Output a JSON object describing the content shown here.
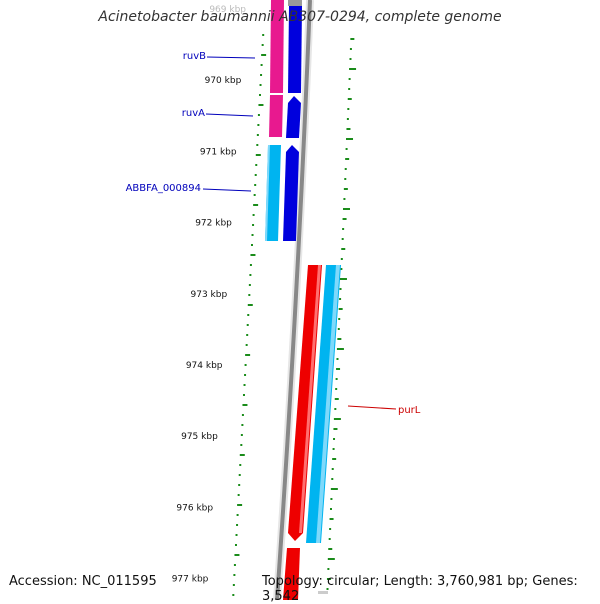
{
  "title": "Acinetobacter baumannii AB307-0294, complete genome",
  "footer": {
    "accession": "Accession: NC_011595",
    "summary": "Topology: circular; Length: 3,760,981 bp; Genes: 3,542"
  },
  "ticks": [
    {
      "label": "969 kbp",
      "faded": true
    },
    {
      "label": "970 kbp"
    },
    {
      "label": "971 kbp"
    },
    {
      "label": "972 kbp"
    },
    {
      "label": "973 kbp"
    },
    {
      "label": "974 kbp"
    },
    {
      "label": "975 kbp"
    },
    {
      "label": "976 kbp"
    },
    {
      "label": "977 kbp"
    }
  ],
  "genes": [
    {
      "name": "ruvB",
      "color": "#0000bb"
    },
    {
      "name": "ruvA",
      "color": "#0000bb"
    },
    {
      "name": "ABBFA_000894",
      "color": "#0000bb"
    },
    {
      "name": "purL",
      "color": "#cc0000"
    }
  ],
  "colors": {
    "backbone": "#888888",
    "forward_gene": "#0000dd",
    "forward_cds_magenta": "#e8198f",
    "forward_cds_cyan": "#00b4f0",
    "reverse_gene": "#ee0000",
    "reverse_cds": "#00b4f0",
    "gc_ticks": "#1a8c1a"
  }
}
